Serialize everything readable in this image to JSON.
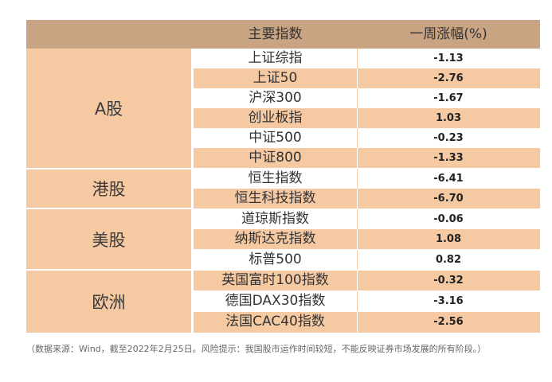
{
  "header": {
    "index_label": "主要指数",
    "change_label": "一周涨幅(%)"
  },
  "groups": [
    {
      "label": "A股"
    },
    {
      "label": "港股"
    },
    {
      "label": "美股"
    },
    {
      "label": "欧洲"
    }
  ],
  "rows": [
    {
      "name": "上证综指",
      "value": "-1.13"
    },
    {
      "name": "上证50",
      "value": "-2.76"
    },
    {
      "name": "沪深300",
      "value": "-1.67"
    },
    {
      "name": "创业板指",
      "value": "1.03"
    },
    {
      "name": "中证500",
      "value": "-0.23"
    },
    {
      "name": "中证800",
      "value": "-1.33"
    },
    {
      "name": "恒生指数",
      "value": "-6.41"
    },
    {
      "name": "恒生科技指数",
      "value": "-6.70"
    },
    {
      "name": "道琼斯指数",
      "value": "-0.06"
    },
    {
      "name": "纳斯达克指数",
      "value": "1.08"
    },
    {
      "name": "标普500",
      "value": "0.82"
    },
    {
      "name": "英国富时100指数",
      "value": "-0.32"
    },
    {
      "name": "德国DAX30指数",
      "value": "-3.16"
    },
    {
      "name": "法国CAC40指数",
      "value": "-2.56"
    }
  ],
  "footnote": "（数据来源：Wind，截至2022年2月25日。风险提示：我国股市运作时间较短，不能反映证券市场发展的所有阶段。）"
}
